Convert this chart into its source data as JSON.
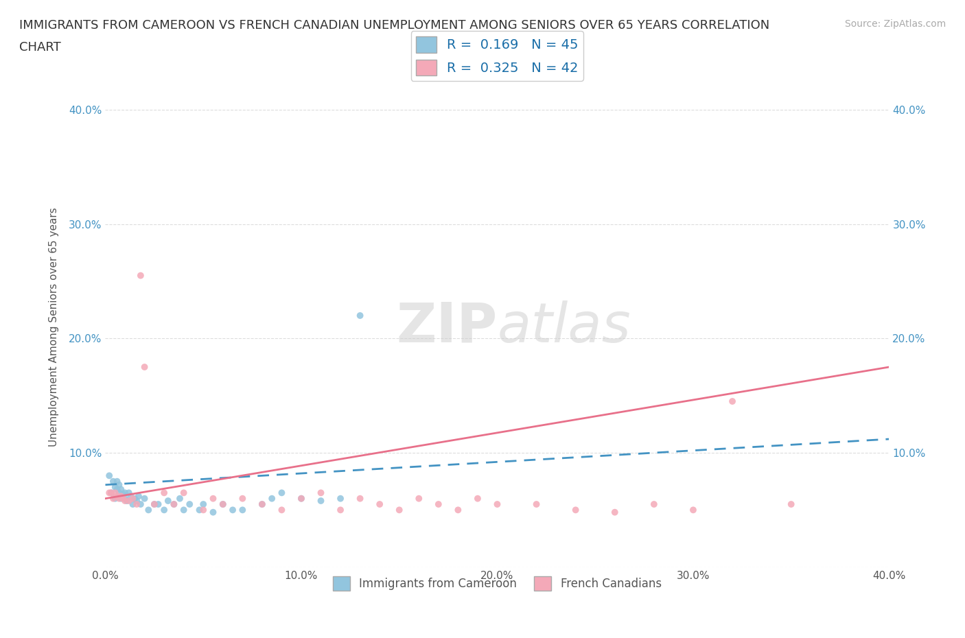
{
  "title_line1": "IMMIGRANTS FROM CAMEROON VS FRENCH CANADIAN UNEMPLOYMENT AMONG SENIORS OVER 65 YEARS CORRELATION",
  "title_line2": "CHART",
  "source": "Source: ZipAtlas.com",
  "ylabel": "Unemployment Among Seniors over 65 years",
  "watermark_zip": "ZIP",
  "watermark_atlas": "atlas",
  "xlim": [
    0.0,
    0.4
  ],
  "ylim": [
    0.0,
    0.42
  ],
  "xticks": [
    0.0,
    0.1,
    0.2,
    0.3,
    0.4
  ],
  "yticks": [
    0.0,
    0.1,
    0.2,
    0.3,
    0.4
  ],
  "xtick_labels": [
    "0.0%",
    "10.0%",
    "20.0%",
    "30.0%",
    "40.0%"
  ],
  "ytick_labels": [
    "",
    "10.0%",
    "20.0%",
    "30.0%",
    "40.0%"
  ],
  "blue_color": "#92c5de",
  "pink_color": "#f4a9b8",
  "blue_line_color": "#4393c3",
  "pink_line_color": "#e8708a",
  "R_blue": 0.169,
  "N_blue": 45,
  "R_pink": 0.325,
  "N_pink": 42,
  "legend_label_blue": "Immigrants from Cameroon",
  "legend_label_pink": "French Canadians",
  "blue_scatter_x": [
    0.002,
    0.003,
    0.004,
    0.005,
    0.005,
    0.006,
    0.006,
    0.007,
    0.007,
    0.008,
    0.008,
    0.009,
    0.01,
    0.01,
    0.011,
    0.012,
    0.013,
    0.014,
    0.015,
    0.016,
    0.017,
    0.018,
    0.02,
    0.022,
    0.025,
    0.027,
    0.03,
    0.032,
    0.035,
    0.038,
    0.04,
    0.043,
    0.048,
    0.05,
    0.055,
    0.06,
    0.065,
    0.07,
    0.08,
    0.085,
    0.09,
    0.1,
    0.11,
    0.12,
    0.13
  ],
  "blue_scatter_y": [
    0.08,
    0.065,
    0.075,
    0.07,
    0.06,
    0.075,
    0.068,
    0.065,
    0.072,
    0.06,
    0.068,
    0.064,
    0.065,
    0.06,
    0.058,
    0.065,
    0.062,
    0.055,
    0.06,
    0.058,
    0.062,
    0.055,
    0.06,
    0.05,
    0.055,
    0.055,
    0.05,
    0.058,
    0.055,
    0.06,
    0.05,
    0.055,
    0.05,
    0.055,
    0.048,
    0.055,
    0.05,
    0.05,
    0.055,
    0.06,
    0.065,
    0.06,
    0.058,
    0.06,
    0.22
  ],
  "pink_scatter_x": [
    0.002,
    0.003,
    0.004,
    0.005,
    0.006,
    0.007,
    0.008,
    0.009,
    0.01,
    0.012,
    0.014,
    0.016,
    0.018,
    0.02,
    0.025,
    0.03,
    0.035,
    0.04,
    0.05,
    0.055,
    0.06,
    0.07,
    0.08,
    0.09,
    0.1,
    0.11,
    0.12,
    0.13,
    0.14,
    0.15,
    0.16,
    0.17,
    0.18,
    0.19,
    0.2,
    0.22,
    0.24,
    0.26,
    0.28,
    0.3,
    0.32,
    0.35
  ],
  "pink_scatter_y": [
    0.065,
    0.065,
    0.06,
    0.065,
    0.062,
    0.06,
    0.062,
    0.06,
    0.058,
    0.058,
    0.06,
    0.055,
    0.255,
    0.175,
    0.055,
    0.065,
    0.055,
    0.065,
    0.05,
    0.06,
    0.055,
    0.06,
    0.055,
    0.05,
    0.06,
    0.065,
    0.05,
    0.06,
    0.055,
    0.05,
    0.06,
    0.055,
    0.05,
    0.06,
    0.055,
    0.055,
    0.05,
    0.048,
    0.055,
    0.05,
    0.145,
    0.055
  ],
  "blue_trend_x": [
    0.0,
    0.4
  ],
  "blue_trend_y": [
    0.072,
    0.112
  ],
  "pink_trend_x": [
    0.0,
    0.4
  ],
  "pink_trend_y": [
    0.06,
    0.175
  ],
  "grid_color": "#dddddd",
  "background_color": "#ffffff",
  "title_fontsize": 13,
  "axis_label_fontsize": 11,
  "tick_fontsize": 11,
  "source_fontsize": 10
}
